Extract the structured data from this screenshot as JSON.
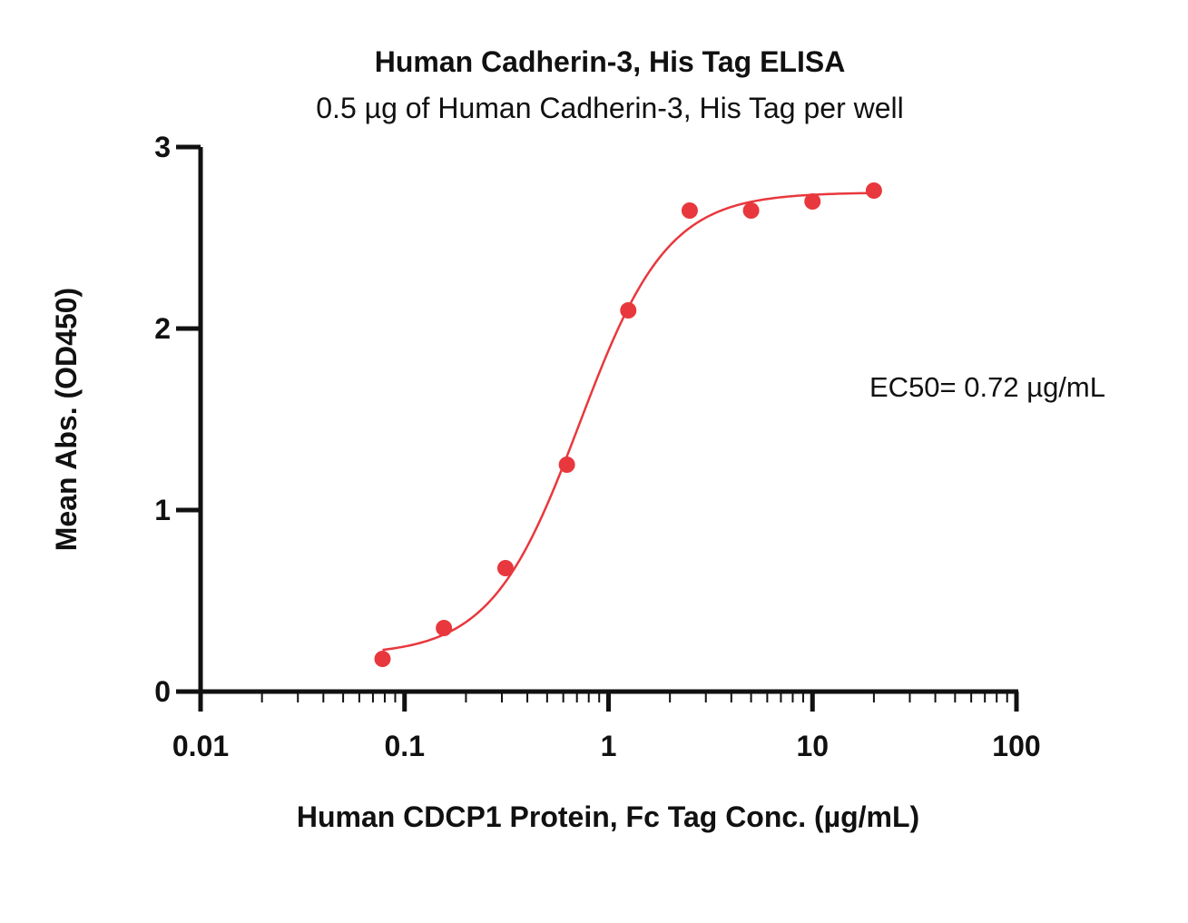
{
  "chart_data": {
    "type": "scatter",
    "title": "Human Cadherin-3, His Tag ELISA",
    "subtitle": "0.5 µg of Human Cadherin-3, His Tag per well",
    "xlabel": "Human CDCP1 Protein, Fc Tag Conc. (µg/mL)",
    "ylabel": "Mean Abs. (OD450)",
    "x_scale": "log",
    "xlim": [
      0.01,
      100
    ],
    "ylim": [
      0,
      3
    ],
    "x_ticks": [
      "0.01",
      "0.1",
      "1",
      "10",
      "100"
    ],
    "y_ticks": [
      "0",
      "1",
      "2",
      "3"
    ],
    "grid": false,
    "annotation": "EC50= 0.72 µg/mL",
    "colors": {
      "series": "#e8383d",
      "axis": "#111111"
    },
    "series": [
      {
        "x": [
          0.078,
          0.156,
          0.3125,
          0.625,
          1.25,
          2.5,
          5,
          10,
          20
        ],
        "y": [
          0.18,
          0.35,
          0.68,
          1.25,
          2.1,
          2.65,
          2.65,
          2.7,
          2.76
        ]
      }
    ],
    "fit": {
      "model": "4PL",
      "bottom": 0.2,
      "top": 2.75,
      "ec50": 0.72,
      "hill": 2.0
    }
  }
}
